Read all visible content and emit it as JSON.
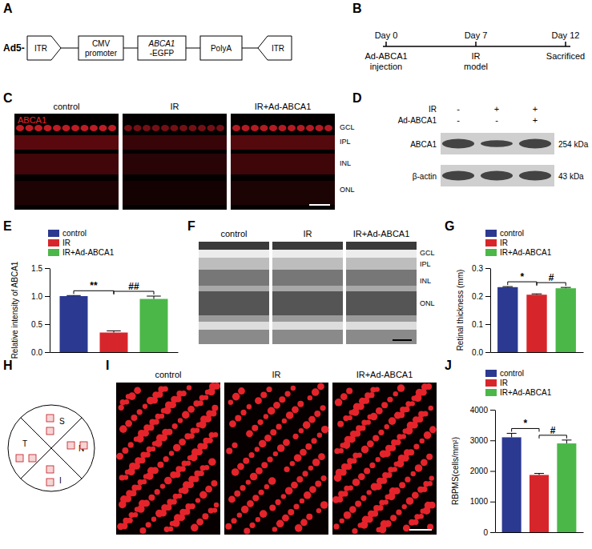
{
  "panels": {
    "A": {
      "label": "A",
      "prefix": "Ad5-",
      "elements": [
        [
          "ITR"
        ],
        [
          "CMV",
          "promoter"
        ],
        [
          "ABCA1",
          "-EGFP"
        ],
        [
          "PolyA"
        ],
        [
          "ITR"
        ]
      ]
    },
    "B": {
      "label": "B",
      "days": [
        "Day 0",
        "Day 7",
        "Day 12"
      ],
      "events": [
        [
          "Ad-ABCA1",
          "injection"
        ],
        [
          "IR",
          "model"
        ],
        [
          "Sacrificed"
        ]
      ]
    },
    "C": {
      "label": "C",
      "conditions": [
        "control",
        "IR",
        "IR+Ad-ABCA1"
      ],
      "stain": "ABCA1",
      "layers": [
        "GCL",
        "IPL",
        "INL",
        "ONL"
      ]
    },
    "D": {
      "label": "D",
      "rows": [
        {
          "name": "IR",
          "signs": [
            "-",
            "+",
            "+"
          ]
        },
        {
          "name": "Ad-ABCA1",
          "signs": [
            "-",
            "-",
            "+"
          ]
        }
      ],
      "bands": [
        {
          "name": "ABCA1",
          "size": "254 kDa"
        },
        {
          "name": "β-actin",
          "size": "43 kDa"
        }
      ]
    },
    "E": {
      "label": "E"
    },
    "F": {
      "label": "F",
      "conditions": [
        "control",
        "IR",
        "IR+Ad-ABCA1"
      ],
      "layers": [
        "GCL",
        "IPL",
        "INL",
        "ONL"
      ]
    },
    "G": {
      "label": "G"
    },
    "H": {
      "label": "H",
      "quadrants": [
        "S",
        "N",
        "I",
        "T"
      ]
    },
    "I": {
      "label": "I",
      "conditions": [
        "control",
        "IR",
        "IR+Ad-ABCA1"
      ]
    },
    "J": {
      "label": "J"
    }
  },
  "chart_data": [
    {
      "type": "bar",
      "categories": [
        "control",
        "IR",
        "IR+Ad-ABCA1"
      ],
      "values": [
        1.0,
        0.35,
        0.95
      ],
      "errors": [
        0.01,
        0.03,
        0.05
      ],
      "colors": [
        "#2b3990",
        "#d7262b",
        "#4cb749"
      ],
      "ylabel": "Relative intensity of ABCA1",
      "ylim": [
        0,
        1.5
      ],
      "yticks": [
        {
          "value": 0,
          "label": "0.0"
        },
        {
          "value": 0.5,
          "label": "0.5"
        },
        {
          "value": 1,
          "label": "1.0"
        },
        {
          "value": 1.5,
          "label": "1.5"
        }
      ],
      "grid": false,
      "legend": "top-left",
      "tick_labels": "y",
      "annotations": [
        {
          "text": "**",
          "categories": [
            "control",
            "IR"
          ]
        },
        {
          "text": "##",
          "categories": [
            "IR",
            "IR+Ad-ABCA1"
          ]
        }
      ]
    },
    {
      "type": "bar",
      "categories": [
        "control",
        "IR",
        "IR+Ad-ABCA1"
      ],
      "values": [
        0.232,
        0.205,
        0.228
      ],
      "errors": [
        0.002,
        0.003,
        0.003
      ],
      "colors": [
        "#2b3990",
        "#d7262b",
        "#4cb749"
      ],
      "ylabel": "Retinal thickness (mm)",
      "ylim": [
        0,
        0.3
      ],
      "yticks": [
        {
          "value": 0,
          "label": "0.0"
        },
        0.1,
        0.2,
        0.3
      ],
      "grid": false,
      "legend": "top-left",
      "tick_labels": "y",
      "annotations": [
        {
          "text": "*",
          "categories": [
            "control",
            "IR"
          ]
        },
        {
          "text": "#",
          "categories": [
            "IR",
            "IR+Ad-ABCA1"
          ]
        }
      ]
    },
    {
      "type": "bar",
      "categories": [
        "control",
        "IR",
        "IR+Ad-ABCA1"
      ],
      "values": [
        3100,
        1870,
        2900
      ],
      "errors": [
        130,
        50,
        110
      ],
      "colors": [
        "#2b3990",
        "#d7262b",
        "#4cb749"
      ],
      "ylabel": "RBPMS(cells/mm²)",
      "ylim": [
        0,
        4000
      ],
      "yticks": [
        0,
        1000,
        2000,
        3000,
        4000
      ],
      "grid": false,
      "legend": "top-left",
      "tick_labels": "y",
      "annotations": [
        {
          "text": "*",
          "categories": [
            "control",
            "IR"
          ]
        },
        {
          "text": "#",
          "categories": [
            "IR",
            "IR+Ad-ABCA1"
          ]
        }
      ]
    }
  ]
}
